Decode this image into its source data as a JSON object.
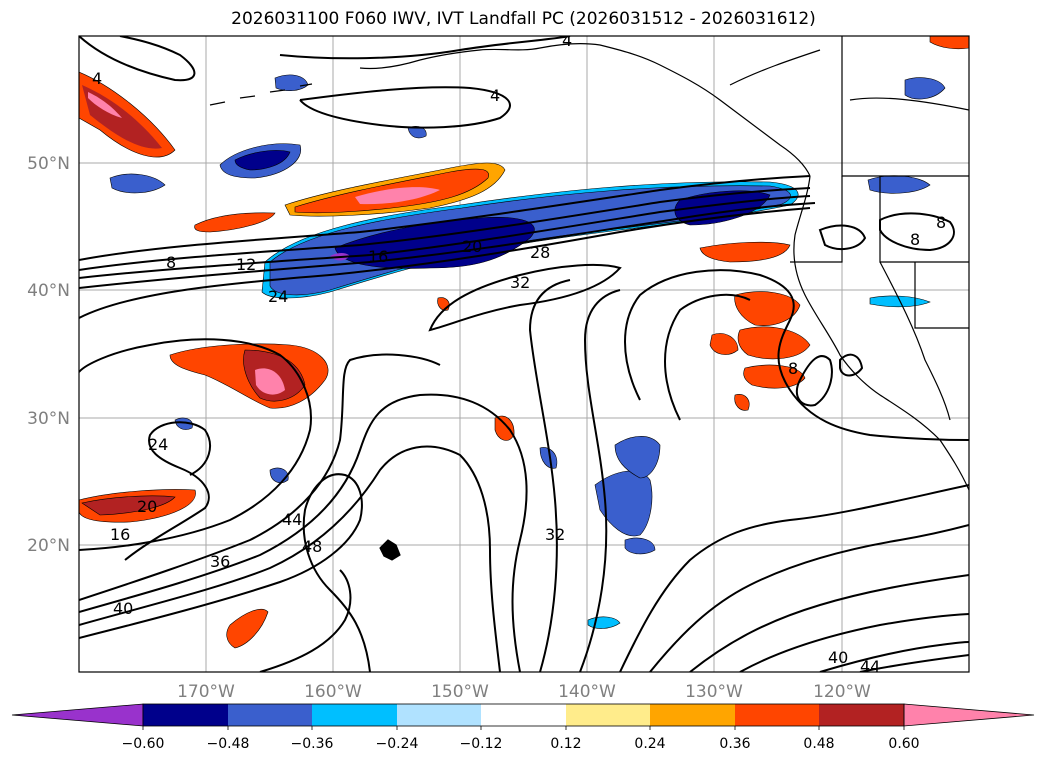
{
  "title": "2026031100 F060 IWV, IVT Landfall PC (2026031512 - 2026031612)",
  "lat_labels": [
    "50°N",
    "40°N",
    "30°N",
    "20°N"
  ],
  "lon_labels": [
    "170°W",
    "160°W",
    "150°W",
    "140°W",
    "130°W",
    "120°W"
  ],
  "colorbar": {
    "tick_labels": [
      "−0.60",
      "−0.48",
      "−0.36",
      "−0.24",
      "−0.12",
      "0.12",
      "0.24",
      "0.36",
      "0.48",
      "0.60"
    ],
    "colors": {
      "under": "#9932cc",
      "neg_060": "#00008b",
      "neg_048": "#3a5fcd",
      "neg_036": "#00bfff",
      "neg_024": "#b0e2ff",
      "neutral": "#ffffff",
      "pos_012": "#ffec8b",
      "pos_024": "#ffa500",
      "pos_036": "#ff4500",
      "pos_048": "#b22222",
      "over": "#ff82ab"
    }
  },
  "contour_labels": [
    "4",
    "4",
    "4",
    "8",
    "8",
    "8",
    "12",
    "16",
    "20",
    "28",
    "32",
    "24",
    "24",
    "20",
    "16",
    "36",
    "44",
    "48",
    "32",
    "40",
    "40",
    "44",
    "8"
  ]
}
